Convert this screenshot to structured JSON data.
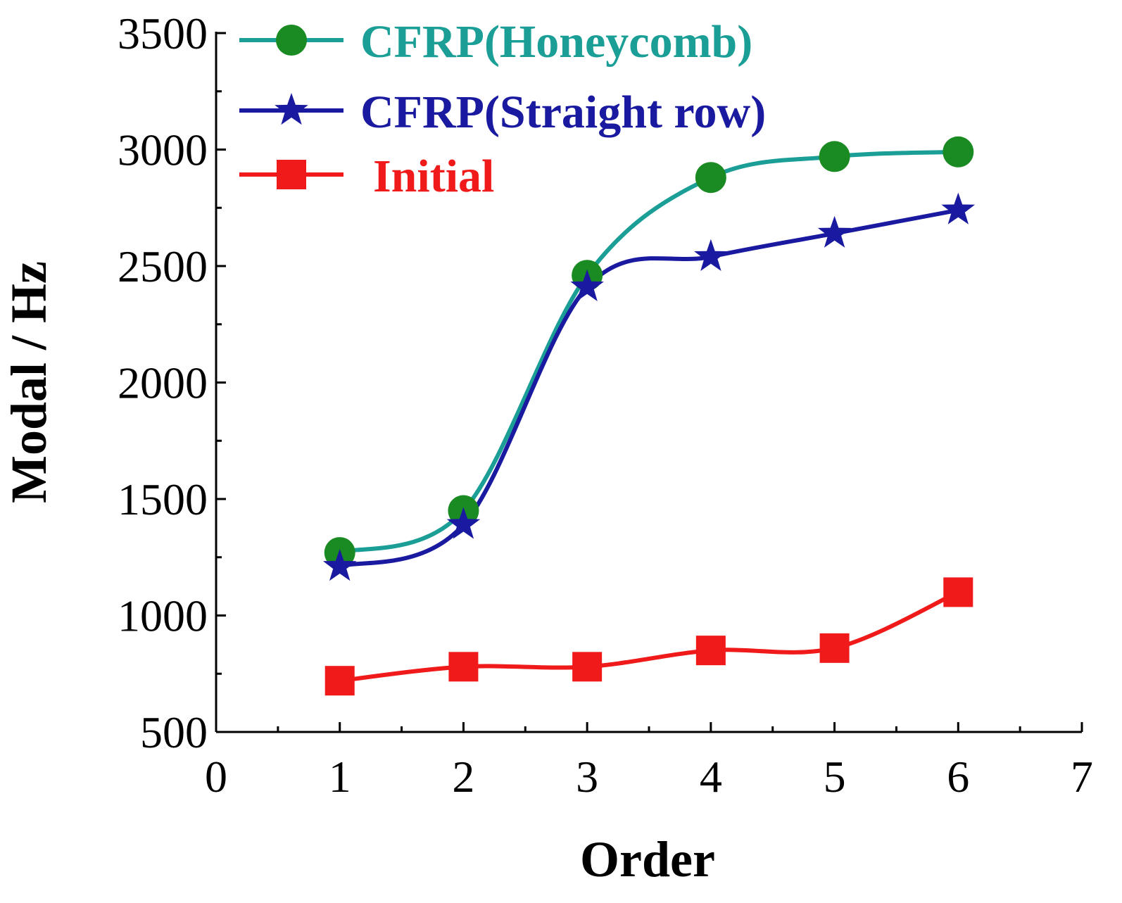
{
  "chart_data": {
    "type": "line",
    "title": "",
    "xlabel": "Order",
    "ylabel": "Modal / Hz",
    "xlim": [
      0,
      7
    ],
    "ylim": [
      500,
      3500
    ],
    "xticks": [
      "0",
      "1",
      "2",
      "3",
      "4",
      "5",
      "6",
      "7"
    ],
    "yticks": [
      "500",
      "1000",
      "1500",
      "2000",
      "2500",
      "3000",
      "3500"
    ],
    "legend_position": "top-left",
    "grid": false,
    "x": [
      1,
      2,
      3,
      4,
      5,
      6
    ],
    "series": [
      {
        "name": "CFRP(Honeycomb)",
        "color": "#1a9e96",
        "marker_color": "#1a8a22",
        "marker": "circle",
        "values": [
          1270,
          1450,
          2460,
          2880,
          2970,
          2990
        ]
      },
      {
        "name": "CFRP(Straight row)",
        "color": "#1a1aa0",
        "marker_color": "#1a1aa0",
        "marker": "star",
        "values": [
          1210,
          1390,
          2410,
          2540,
          2640,
          2740
        ]
      },
      {
        "name": "Initial",
        "color": "#f01a1a",
        "marker_color": "#f01a1a",
        "marker": "square",
        "values": [
          720,
          780,
          780,
          850,
          860,
          1100
        ]
      }
    ]
  }
}
